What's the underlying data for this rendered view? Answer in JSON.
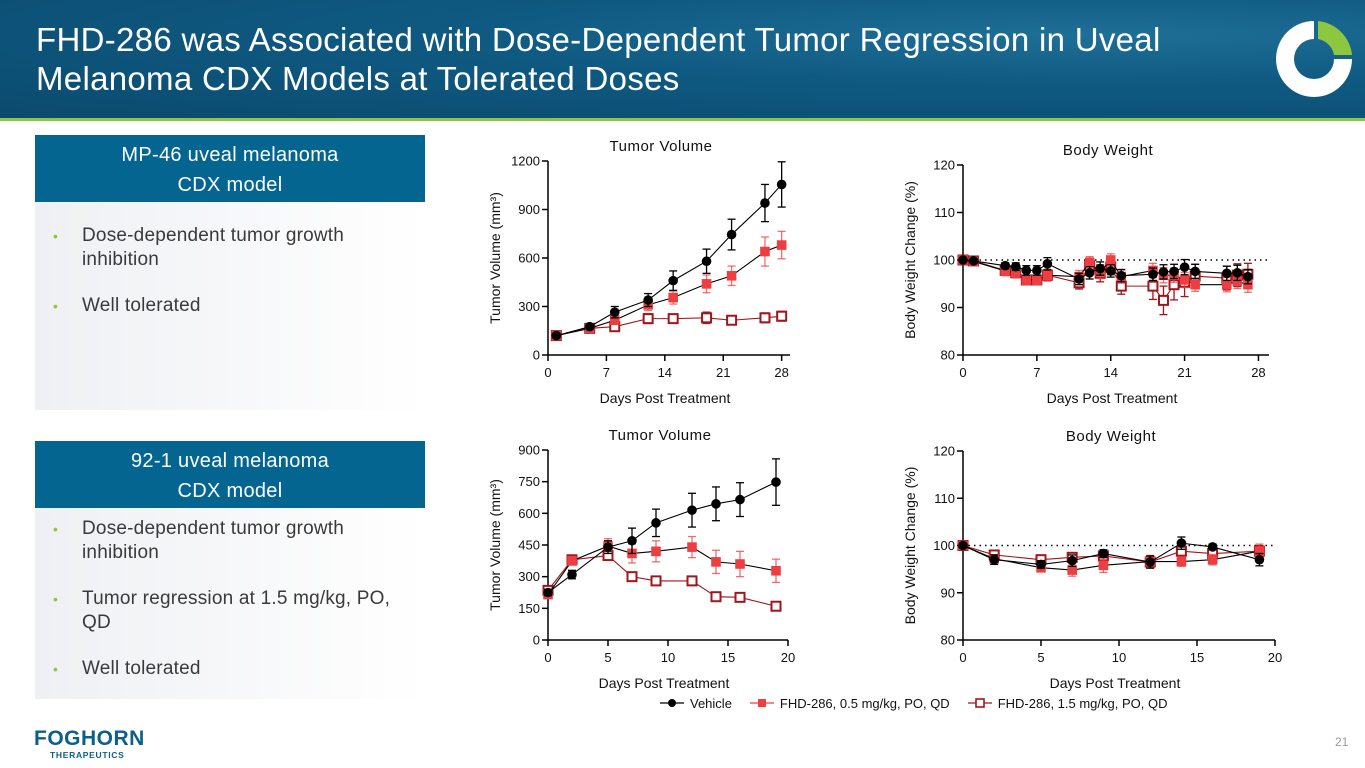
{
  "header": {
    "title": "FHD-286 was Associated with Dose-Dependent Tumor Regression in Uveal Melanoma CDX Models at Tolerated Doses",
    "brand_color": "#0f5a82",
    "accent_color": "#8dc63f"
  },
  "panels": [
    {
      "title_line1": "MP-46 uveal melanoma",
      "title_line2": "CDX model",
      "bullets": [
        "Dose-dependent tumor growth inhibition",
        "Well tolerated"
      ]
    },
    {
      "title_line1": "92-1 uveal melanoma",
      "title_line2": "CDX model",
      "bullets": [
        "Dose-dependent tumor growth inhibition",
        "Tumor regression at 1.5 mg/kg, PO, QD",
        "Well tolerated"
      ]
    }
  ],
  "legend": {
    "items": [
      {
        "label": "Vehicle",
        "color": "#000000",
        "marker": "filled-circle"
      },
      {
        "label": "FHD-286, 0.5 mg/kg, PO, QD",
        "color": "#ef3e42",
        "marker": "filled-square"
      },
      {
        "label": "FHD-286, 1.5 mg/kg, PO, QD",
        "color": "#a0161b",
        "marker": "open-square"
      }
    ]
  },
  "footer": {
    "logo_name": "FOGHORN",
    "logo_sub": "THERAPEUTICS",
    "page_number": "21"
  },
  "chart_data": [
    {
      "id": "mp46-tumor",
      "type": "line",
      "title": "Tumor Volume",
      "xlabel": "Days Post Treatment",
      "ylabel": "Tumor Volume (mm³)",
      "xlim": [
        0,
        29
      ],
      "ylim": [
        0,
        1200
      ],
      "xticks": [
        0,
        7,
        14,
        21,
        28
      ],
      "yticks": [
        0,
        300,
        600,
        900,
        1200
      ],
      "reference_line": null,
      "series": [
        {
          "name": "Vehicle",
          "x": [
            1,
            5,
            8,
            12,
            15,
            19,
            22,
            26,
            28
          ],
          "y": [
            120,
            175,
            265,
            340,
            460,
            580,
            745,
            940,
            1055
          ],
          "err": [
            15,
            15,
            35,
            40,
            60,
            75,
            95,
            115,
            140
          ]
        },
        {
          "name": "FHD-286, 0.5 mg/kg, PO, QD",
          "x": [
            1,
            5,
            8,
            12,
            15,
            19,
            22,
            26,
            28
          ],
          "y": [
            120,
            165,
            215,
            310,
            355,
            440,
            490,
            640,
            680
          ],
          "err": [
            15,
            15,
            25,
            35,
            40,
            55,
            60,
            90,
            85
          ]
        },
        {
          "name": "FHD-286, 1.5 mg/kg, PO, QD",
          "x": [
            1,
            5,
            8,
            12,
            15,
            19,
            22,
            26,
            28
          ],
          "y": [
            120,
            165,
            175,
            225,
            225,
            230,
            215,
            230,
            240
          ],
          "err": [
            15,
            15,
            20,
            30,
            25,
            35,
            25,
            30,
            30
          ]
        }
      ]
    },
    {
      "id": "mp46-body",
      "type": "line",
      "title": "Body Weight",
      "xlabel": "Days Post Treatment",
      "ylabel": "Body Weight Change (%)",
      "xlim": [
        0,
        29
      ],
      "ylim": [
        80,
        120
      ],
      "xticks": [
        0,
        7,
        14,
        21,
        28
      ],
      "yticks": [
        80,
        90,
        100,
        110,
        120
      ],
      "reference_line": 100,
      "series": [
        {
          "name": "Vehicle",
          "x": [
            0,
            1,
            4,
            5,
            6,
            7,
            8,
            11,
            12,
            13,
            14,
            15,
            18,
            19,
            20,
            21,
            22,
            25,
            26,
            27
          ],
          "y": [
            100,
            99.8,
            98.8,
            98.6,
            97.8,
            97.8,
            99.2,
            96.0,
            97.3,
            98.2,
            97.7,
            96.7,
            97.0,
            97.5,
            97.6,
            98.5,
            97.6,
            97.2,
            97.3,
            96.5
          ],
          "err": [
            0.5,
            0.5,
            0.6,
            0.8,
            1.0,
            1.0,
            1.3,
            1.2,
            1.3,
            1.4,
            1.3,
            1.3,
            1.3,
            1.5,
            1.5,
            1.6,
            1.5,
            1.5,
            1.6,
            1.5
          ]
        },
        {
          "name": "FHD-286, 0.5 mg/kg, PO, QD",
          "x": [
            0,
            1,
            4,
            5,
            6,
            7,
            8,
            11,
            12,
            13,
            14,
            15,
            18,
            19,
            20,
            21,
            22,
            25,
            26,
            27
          ],
          "y": [
            100,
            99.7,
            97.7,
            97.3,
            95.8,
            95.8,
            96.8,
            96.5,
            99.5,
            97.5,
            100.0,
            96.5,
            97.8,
            96.8,
            96.8,
            95.8,
            94.8,
            94.8,
            95.5,
            94.8
          ],
          "err": [
            0.6,
            0.6,
            1.0,
            1.0,
            1.0,
            1.0,
            1.2,
            1.3,
            1.2,
            1.4,
            1.3,
            1.4,
            1.5,
            1.6,
            1.5,
            1.6,
            1.4,
            1.5,
            1.5,
            1.6
          ]
        },
        {
          "name": "FHD-286, 1.5 mg/kg, PO, QD",
          "x": [
            0,
            1,
            4,
            5,
            6,
            7,
            8,
            11,
            12,
            13,
            14,
            15,
            18,
            19,
            20,
            21,
            22,
            25,
            26,
            27
          ],
          "y": [
            100,
            99.8,
            97.8,
            97.3,
            95.8,
            95.8,
            96.8,
            95.2,
            98.8,
            97.2,
            98.5,
            94.5,
            94.5,
            91.5,
            94.8,
            95.3,
            96.6,
            96.2,
            96.8,
            97.0
          ],
          "err": [
            0.6,
            0.6,
            1.0,
            1.0,
            1.0,
            1.0,
            1.2,
            1.3,
            1.5,
            1.8,
            1.6,
            1.7,
            2.8,
            3.0,
            3.2,
            3.0,
            2.5,
            2.5,
            2.4,
            2.3
          ]
        }
      ]
    },
    {
      "id": "921-tumor",
      "type": "line",
      "title": "Tumor Volume",
      "xlabel": "Days Post Treatment",
      "ylabel": "Tumor Volume (mm³)",
      "xlim": [
        0,
        20
      ],
      "ylim": [
        0,
        900
      ],
      "xticks": [
        0,
        5,
        10,
        15,
        20
      ],
      "yticks": [
        0,
        150,
        300,
        450,
        600,
        750,
        900
      ],
      "reference_line": null,
      "series": [
        {
          "name": "Vehicle",
          "x": [
            0,
            2,
            5,
            7,
            9,
            12,
            14,
            16,
            19
          ],
          "y": [
            225,
            310,
            440,
            470,
            555,
            615,
            645,
            665,
            748
          ],
          "err": [
            15,
            20,
            30,
            60,
            65,
            80,
            80,
            80,
            110
          ]
        },
        {
          "name": "FHD-286, 0.5 mg/kg, PO, QD",
          "x": [
            0,
            2,
            5,
            7,
            9,
            12,
            14,
            16,
            19
          ],
          "y": [
            215,
            375,
            445,
            410,
            420,
            440,
            370,
            360,
            328
          ],
          "err": [
            15,
            20,
            35,
            45,
            50,
            50,
            55,
            60,
            55
          ]
        },
        {
          "name": "FHD-286, 1.5 mg/kg, PO, QD",
          "x": [
            0,
            2,
            5,
            7,
            9,
            12,
            14,
            16,
            19
          ],
          "y": [
            235,
            380,
            400,
            300,
            280,
            280,
            205,
            202,
            160
          ],
          "err": [
            12,
            20,
            15,
            8,
            8,
            8,
            8,
            8,
            8
          ]
        }
      ]
    },
    {
      "id": "921-body",
      "type": "line",
      "title": "Body Weight",
      "xlabel": "Days Post Treatment",
      "ylabel": "Body Weight Change (%)",
      "xlim": [
        0,
        20
      ],
      "ylim": [
        80,
        120
      ],
      "xticks": [
        0,
        5,
        10,
        15,
        20
      ],
      "yticks": [
        80,
        90,
        100,
        110,
        120
      ],
      "reference_line": 100,
      "series": [
        {
          "name": "Vehicle",
          "x": [
            0,
            2,
            5,
            7,
            9,
            12,
            14,
            16,
            19
          ],
          "y": [
            100,
            97.0,
            96.0,
            96.8,
            98.3,
            96.5,
            100.5,
            99.7,
            97.0
          ],
          "err": [
            0.5,
            1.0,
            0.8,
            1.2,
            0.8,
            1.3,
            1.3,
            0.6,
            1.3
          ]
        },
        {
          "name": "FHD-286, 0.5 mg/kg, PO, QD",
          "x": [
            0,
            2,
            5,
            7,
            9,
            12,
            14,
            16,
            19
          ],
          "y": [
            100,
            97.2,
            95.3,
            94.8,
            95.8,
            96.6,
            96.6,
            97.0,
            98.8
          ],
          "err": [
            0.5,
            0.8,
            0.9,
            1.3,
            1.5,
            1.3,
            1.0,
            1.1,
            1.5
          ]
        },
        {
          "name": "FHD-286, 1.5 mg/kg, PO, QD",
          "x": [
            0,
            2,
            5,
            7,
            9,
            12,
            14,
            16,
            19
          ],
          "y": [
            100,
            98.0,
            97.0,
            97.5,
            97.8,
            96.5,
            98.8,
            98.3,
            98.8
          ],
          "err": [
            0.5,
            0.6,
            0.7,
            0.9,
            0.9,
            1.1,
            1.0,
            0.9,
            1.2
          ]
        }
      ]
    }
  ]
}
